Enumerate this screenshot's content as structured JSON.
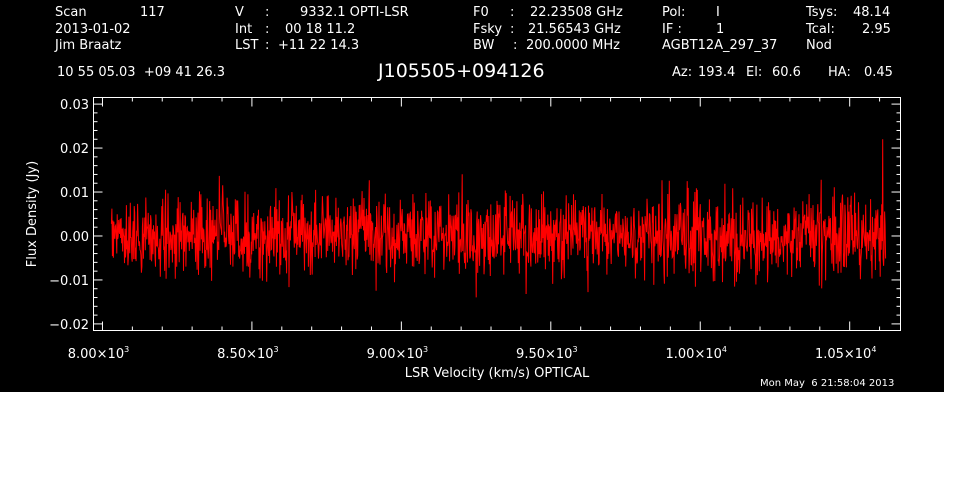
{
  "header": {
    "col1": {
      "scan_label": "Scan",
      "scan_value": "117",
      "date": "2013-01-02",
      "observer": "Jim Braatz"
    },
    "col2": {
      "v_label": "V",
      "v_value": "9332.1 OPTI-LSR",
      "int_label": "Int",
      "int_value": "00 18 11.2",
      "lst_label": "LST",
      "lst_value": "+11 22 14.3"
    },
    "col3": {
      "f0_label": "F0",
      "f0_value": "22.23508 GHz",
      "fsky_label": "Fsky",
      "fsky_value": "21.56543 GHz",
      "bw_label": "BW",
      "bw_value": "200.0000 MHz"
    },
    "col4": {
      "pol_label": "Pol:",
      "pol_value": "I",
      "if_label": "IF :",
      "if_value": "1",
      "project": "AGBT12A_297_37"
    },
    "col5": {
      "tsys_label": "Tsys:",
      "tsys_value": "48.14",
      "tcal_label": "Tcal:",
      "tcal_value": "2.95",
      "mode": "Nod"
    },
    "coords": "10 55 05.03  +09 41 26.3",
    "source": "J105505+094126",
    "az_label": "Az:",
    "az_value": "193.4",
    "el_label": "El:",
    "el_value": "60.6",
    "ha_label": "HA:",
    "ha_value": "0.45"
  },
  "timestamp": "Mon May  6 21:58:04 2013",
  "chart_data": {
    "type": "line",
    "xlabel": "LSR Velocity (km/s) OPTICAL",
    "ylabel": "Flux Density (Jy)",
    "xlim": [
      7970,
      10670
    ],
    "ylim": [
      -0.0215,
      0.0315
    ],
    "x_ticks": [
      {
        "value": 8000,
        "mantissa": "8.00",
        "exp": "3"
      },
      {
        "value": 8500,
        "mantissa": "8.50",
        "exp": "3"
      },
      {
        "value": 9000,
        "mantissa": "9.00",
        "exp": "3"
      },
      {
        "value": 9500,
        "mantissa": "9.50",
        "exp": "3"
      },
      {
        "value": 10000,
        "mantissa": "1.00",
        "exp": "4"
      },
      {
        "value": 10500,
        "mantissa": "1.05",
        "exp": "4"
      }
    ],
    "y_ticks": [
      {
        "value": 0.03,
        "label": "0.03"
      },
      {
        "value": 0.02,
        "label": "0.02"
      },
      {
        "value": 0.01,
        "label": "0.01"
      },
      {
        "value": 0.0,
        "label": "0.00"
      },
      {
        "value": -0.01,
        "label": "−0.01"
      },
      {
        "value": -0.02,
        "label": "−0.02"
      }
    ],
    "series": [
      {
        "color": "#ff0000",
        "x_start": 8030,
        "x_end": 10620,
        "noise_rms_jy": 0.0045,
        "y_min": -0.015,
        "y_max": 0.022,
        "peak_x": 10600,
        "peak_y": 0.022
      }
    ],
    "grid": false
  }
}
